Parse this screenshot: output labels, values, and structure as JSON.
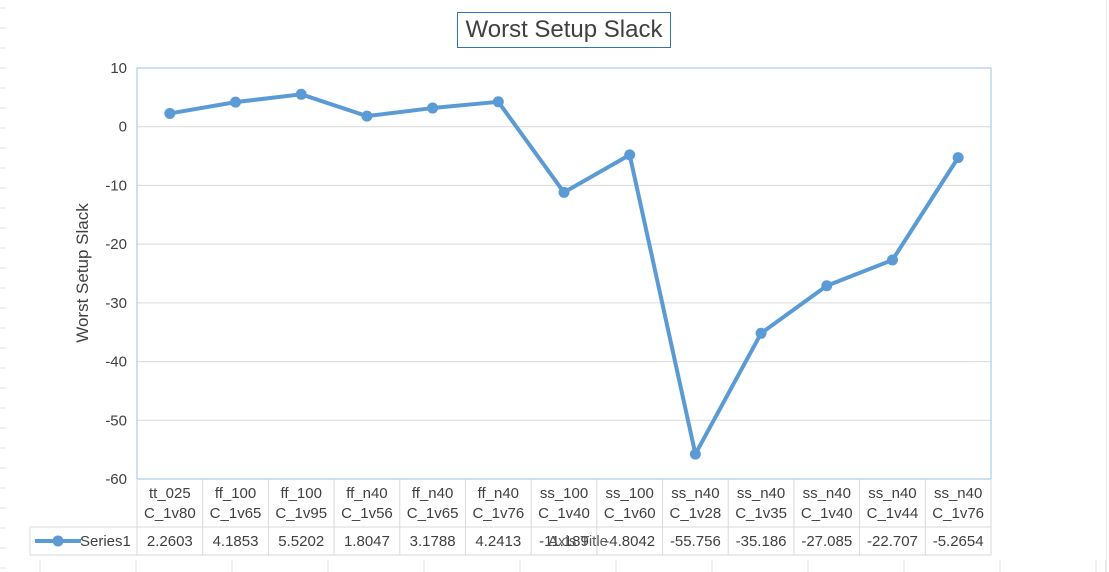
{
  "colors": {
    "series": "#5b9bd5",
    "plot_border": "#9dc3e6",
    "grid": "#d9d9d9",
    "title_border": "#2e75b6",
    "text": "#404040"
  },
  "chart_data": {
    "type": "line",
    "title": "Worst Setup Slack",
    "ylabel": "Worst Setup Slack",
    "xlabel": "Axis Title",
    "ylim": [
      -60,
      10
    ],
    "yticks": [
      10,
      0,
      -10,
      -20,
      -30,
      -40,
      -50,
      -60
    ],
    "grid": true,
    "legend": "data-table",
    "categories": [
      [
        "tt_025",
        "C_1v80"
      ],
      [
        "ff_100",
        "C_1v65"
      ],
      [
        "ff_100",
        "C_1v95"
      ],
      [
        "ff_n40",
        "C_1v56"
      ],
      [
        "ff_n40",
        "C_1v65"
      ],
      [
        "ff_n40",
        "C_1v76"
      ],
      [
        "ss_100",
        "C_1v40"
      ],
      [
        "ss_100",
        "C_1v60"
      ],
      [
        "ss_n40",
        "C_1v28"
      ],
      [
        "ss_n40",
        "C_1v35"
      ],
      [
        "ss_n40",
        "C_1v40"
      ],
      [
        "ss_n40",
        "C_1v44"
      ],
      [
        "ss_n40",
        "C_1v76"
      ]
    ],
    "series": [
      {
        "name": "Series1",
        "values": [
          2.2603,
          4.1853,
          5.5202,
          1.8047,
          3.1788,
          4.2413,
          -11.189,
          -4.8042,
          -55.756,
          -35.186,
          -27.085,
          -22.707,
          -5.2654
        ],
        "labels": [
          "2.2603",
          "4.1853",
          "5.5202",
          "1.8047",
          "3.1788",
          "4.2413",
          "-11.189",
          "-4.8042",
          "-55.756",
          "-35.186",
          "-27.085",
          "-22.707",
          "-5.2654"
        ]
      }
    ]
  }
}
